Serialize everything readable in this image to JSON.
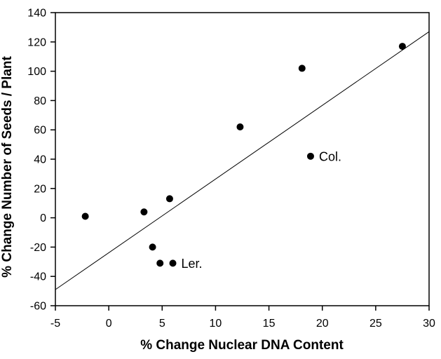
{
  "chart_data": {
    "type": "scatter",
    "title": "",
    "xlabel": "% Change Nuclear DNA Content",
    "ylabel": "% Change Number of Seeds / Plant",
    "xlim": [
      -5,
      30
    ],
    "ylim": [
      -60,
      140
    ],
    "xticks": [
      -5,
      0,
      5,
      10,
      15,
      20,
      25,
      30
    ],
    "yticks": [
      140,
      120,
      100,
      80,
      60,
      40,
      20,
      0,
      -20,
      -40,
      -60
    ],
    "grid": false,
    "legend": null,
    "points": [
      {
        "x": -2.2,
        "y": 1,
        "label": ""
      },
      {
        "x": 3.3,
        "y": 4,
        "label": ""
      },
      {
        "x": 4.1,
        "y": -20,
        "label": ""
      },
      {
        "x": 4.8,
        "y": -31,
        "label": ""
      },
      {
        "x": 5.7,
        "y": 13,
        "label": ""
      },
      {
        "x": 6.0,
        "y": -31,
        "label": "Ler."
      },
      {
        "x": 12.3,
        "y": 62,
        "label": ""
      },
      {
        "x": 18.1,
        "y": 102,
        "label": ""
      },
      {
        "x": 18.9,
        "y": 42,
        "label": "Col."
      },
      {
        "x": 27.5,
        "y": 117,
        "label": ""
      }
    ],
    "trendline": {
      "x1": -5,
      "y1": -49,
      "x2": 30,
      "y2": 127
    },
    "marker": {
      "shape": "circle",
      "color": "#000000",
      "radius": 5
    },
    "colors": {
      "axis": "#000000",
      "background": "#ffffff",
      "text": "#000000"
    }
  }
}
